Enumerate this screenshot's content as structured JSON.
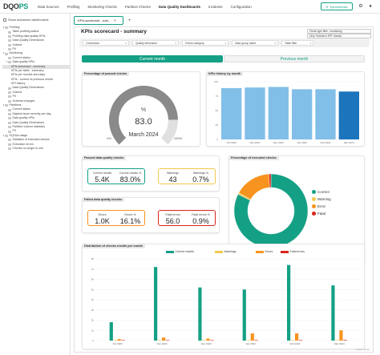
{
  "app": {
    "logo_main": "DQO",
    "logo_accent": "PS",
    "nav": [
      "Data Sources",
      "Profiling",
      "Monitoring Checks",
      "Partition Checks",
      "Data Quality Dashboards",
      "Incidents",
      "Configuration"
    ],
    "active_nav": "Data Quality Dashboards",
    "sync_label": "Synchronize"
  },
  "sidebar": {
    "show_advanced": "Show advanced dashboards",
    "tree": [
      {
        "label": "Profiling",
        "level": 0,
        "expanded": true
      },
      {
        "label": "Table profiling status",
        "level": 1
      },
      {
        "label": "Profiling data quality KPIs",
        "level": 1
      },
      {
        "label": "Data Quality Dimensions",
        "level": 1
      },
      {
        "label": "Volume",
        "level": 1
      },
      {
        "label": "PII",
        "level": 1
      },
      {
        "label": "Monitoring",
        "level": 0,
        "expanded": true
      },
      {
        "label": "Current status",
        "level": 1
      },
      {
        "label": "Data quality KPIs",
        "level": 1,
        "expanded": true
      },
      {
        "label": "KPIs scorecard - summary",
        "level": 2,
        "selected": true
      },
      {
        "label": "KPIs per table - summary",
        "level": 2
      },
      {
        "label": "KPIs per months and days",
        "level": 2
      },
      {
        "label": "KPIs - current vs previous month",
        "level": 2
      },
      {
        "label": "KPI history",
        "level": 2
      },
      {
        "label": "Data Quality Dimensions",
        "level": 1
      },
      {
        "label": "Volume",
        "level": 1
      },
      {
        "label": "PII",
        "level": 1
      },
      {
        "label": "Schema changes",
        "level": 1
      },
      {
        "label": "Partitions",
        "level": 0,
        "expanded": true
      },
      {
        "label": "Current status",
        "level": 1
      },
      {
        "label": "Highest issue severity per day",
        "level": 1
      },
      {
        "label": "Data quality KPIs",
        "level": 1
      },
      {
        "label": "Data Quality Dimensions",
        "level": 1
      },
      {
        "label": "Partition volume statistics",
        "level": 1
      },
      {
        "label": "PII",
        "level": 1
      },
      {
        "label": "DQOps usage",
        "level": 0,
        "expanded": true
      },
      {
        "label": "Statistics of executed checks",
        "level": 1
      },
      {
        "label": "Execution errors",
        "level": 1
      },
      {
        "label": "Checks no longer in use",
        "level": 1
      }
    ]
  },
  "tab": {
    "label": "KPIs scorecard - sum..."
  },
  "dashboard": {
    "title": "KPIs scorecard - summary",
    "check_filter": "Check type filter - monitoring",
    "exclude_label": "Only \"include in KPI\" checks",
    "filters": [
      "Connection",
      "Quality dimension",
      "Check category",
      "Data group name",
      "Table filter"
    ],
    "period_current": "Current month",
    "period_previous": "Previous month",
    "gauge": {
      "label": "Percentage of passed checks",
      "value_text": "83.0",
      "unit": "%",
      "value": 83.0,
      "min_label": "0%",
      "max_label": "100%",
      "period": "March  2024"
    },
    "kpi_history": {
      "label": "KPIs history by month",
      "type": "bar",
      "categories": [
        "Oct 2023",
        "Nov 2023",
        "Dec 2023",
        "Jan 2024",
        "Feb 2024",
        "Mar 2024"
      ],
      "values": [
        89,
        90,
        91,
        87,
        87,
        83
      ],
      "y_ticks": [
        "100",
        "75",
        "50",
        "25",
        "0"
      ],
      "ylim": [
        0,
        100
      ],
      "colors": [
        "#82bfe8",
        "#82bfe8",
        "#82bfe8",
        "#82bfe8",
        "#82bfe8",
        "#1c74bc"
      ]
    },
    "passed": {
      "label": "Passed data quality checks",
      "correct_results_label": "Correct results",
      "correct_results_value": "5.4K",
      "correct_pct_label": "Correct results %",
      "correct_pct_value": "83.0%",
      "warnings_label": "Warnings",
      "warnings_value": "43",
      "warnings_pct_label": "Warnings %",
      "warnings_pct_value": "0.7%"
    },
    "failed": {
      "label": "Failed data quality checks",
      "errors_label": "Errors",
      "errors_value": "1.0K",
      "errors_pct_label": "Errors %",
      "errors_pct_value": "16.1%",
      "fatal_label": "Fatal errors",
      "fatal_value": "56.0",
      "fatal_pct_label": "Fatal errors %",
      "fatal_pct_value": "0.9%"
    },
    "donut": {
      "label": "Percentage of executed checks",
      "type": "pie",
      "slices": [
        {
          "name": "Correct",
          "value": 83.0,
          "color": "#14a085"
        },
        {
          "name": "Warning",
          "value": 0.7,
          "color": "#f2c94c"
        },
        {
          "name": "Error",
          "value": 16.1,
          "color": "#f7931e"
        },
        {
          "name": "Fatal",
          "value": 0.9,
          "color": "#d9251c"
        }
      ]
    },
    "distribution": {
      "label": "Distribution of checks results per month",
      "type": "bar",
      "legend": [
        "Correct results",
        "Warnings",
        "Errors",
        "Fatal errors"
      ],
      "colors": [
        "#14a085",
        "#f2c94c",
        "#f7931e",
        "#d9251c"
      ],
      "categories": [
        "Oct 2023",
        "Nov 2023",
        "Dec 2023",
        "Jan 2024",
        "Feb 2024",
        "Mar 2024"
      ],
      "y_ticks": [
        "8k",
        "7k",
        "6k",
        "5k",
        "4k",
        "3k",
        "2k",
        "1k",
        "0"
      ],
      "ylim": [
        0,
        8000
      ],
      "series": [
        {
          "name": "Correct results",
          "values": [
            1800,
            7200,
            5200,
            5000,
            7400,
            5400
          ]
        },
        {
          "name": "Warnings",
          "values": [
            20,
            30,
            30,
            30,
            40,
            43
          ]
        },
        {
          "name": "Errors",
          "values": [
            150,
            300,
            200,
            700,
            700,
            1000
          ]
        },
        {
          "name": "Fatal errors",
          "values": [
            10,
            20,
            20,
            30,
            40,
            56
          ]
        }
      ]
    },
    "footer": "Looker Studio"
  }
}
